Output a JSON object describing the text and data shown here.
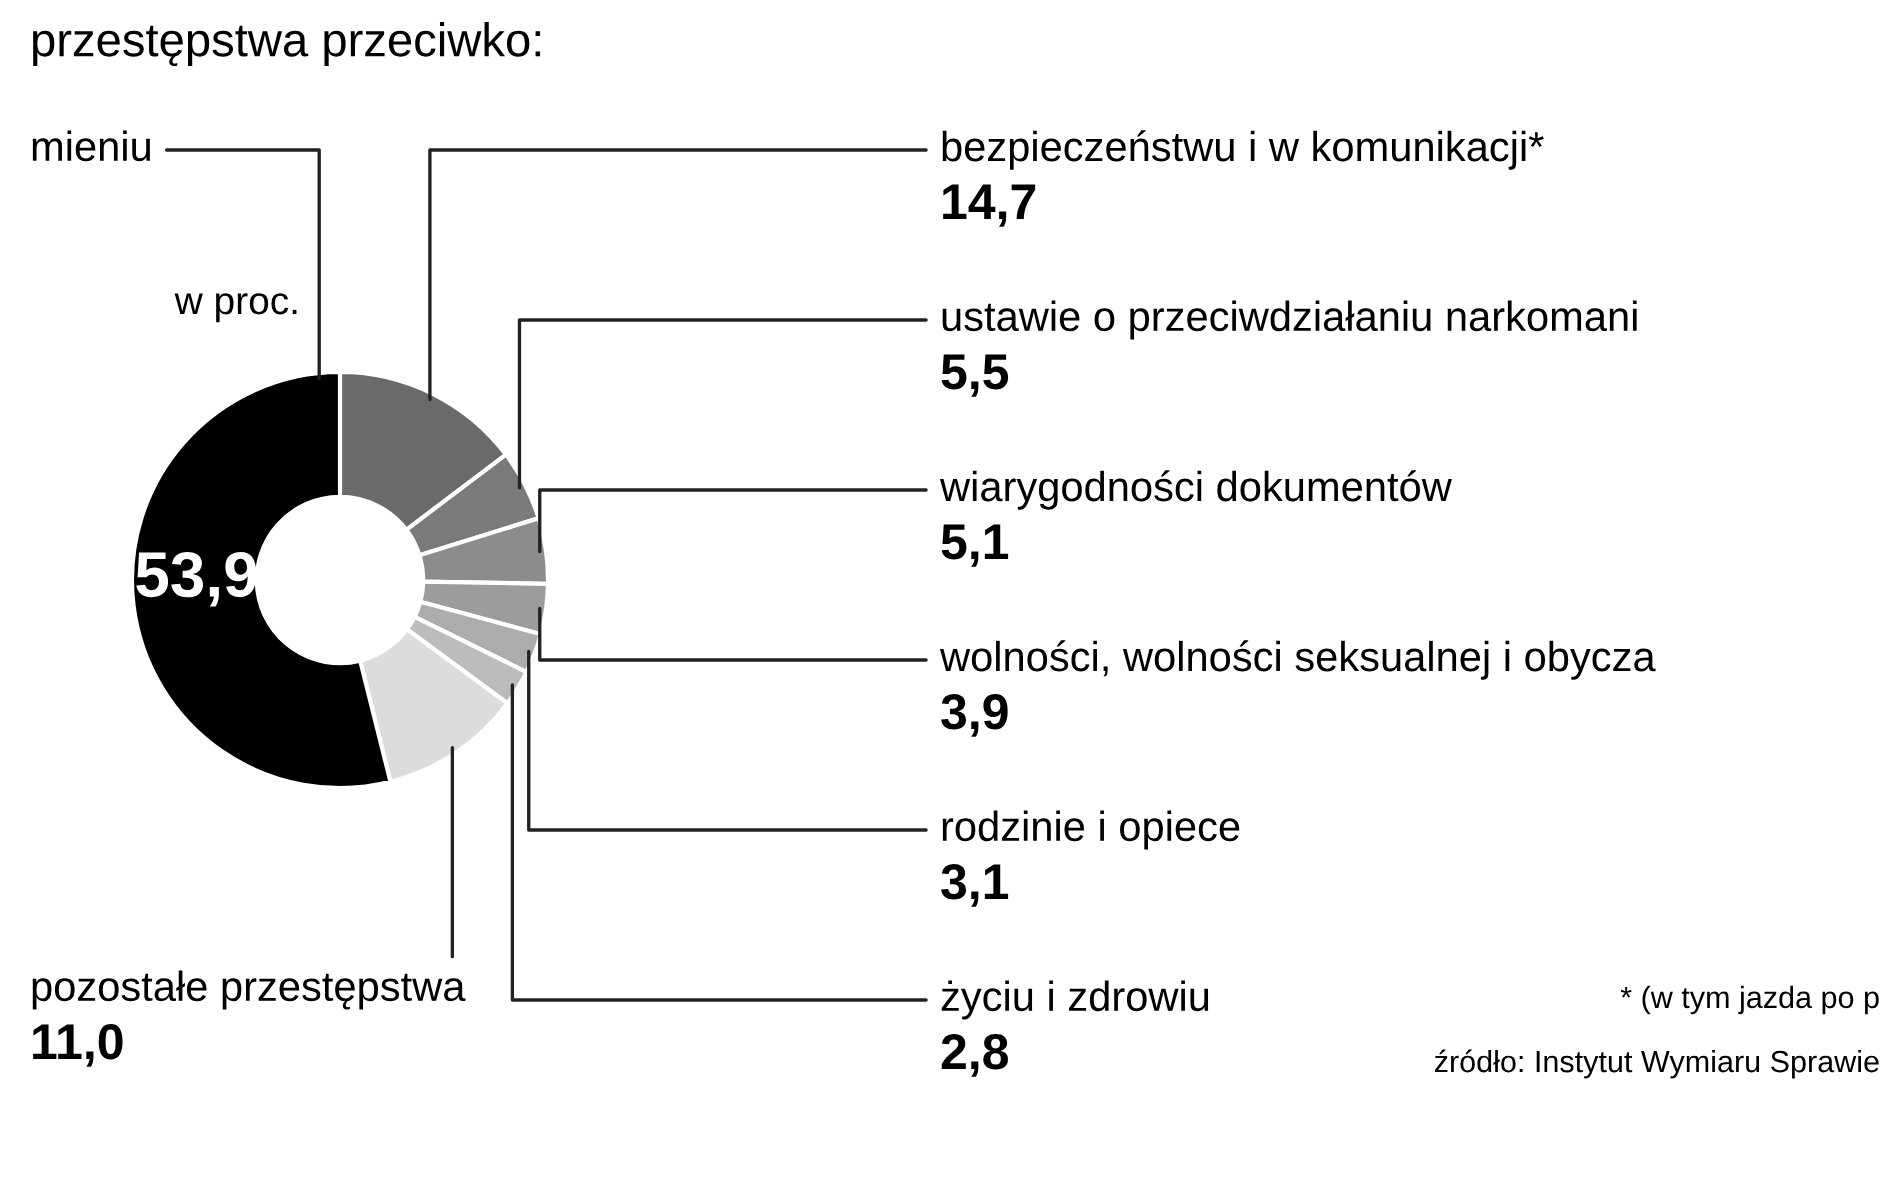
{
  "chart_data": {
    "type": "donut",
    "title": "przestępstwa przeciwko:",
    "categories": [
      "bezpieczeństwu i w komunikacji*",
      "ustawie o przeciwdziałaniu narkomani",
      "wiarygodności dokumentów",
      "wolności, wolności seksualnej i obycza",
      "rodzinie i opiece",
      "życiu i zdrowiu",
      "pozostałe przestępstwa",
      "mieniu"
    ],
    "values": [
      14.7,
      5.5,
      5.1,
      3.9,
      3.1,
      2.8,
      11.0,
      53.9
    ],
    "value_labels": [
      "14,7",
      "5,5",
      "5,1",
      "3,9",
      "3,1",
      "2,8",
      "11,0",
      "53,9"
    ],
    "colors": [
      "#6a6a6a",
      "#7a7a7a",
      "#8c8c8c",
      "#9c9c9c",
      "#acacac",
      "#bcbcbc",
      "#dcdcdc",
      "#000000"
    ],
    "annotations": [
      "w proc.",
      "* (w tym jazda po p",
      "źródło: Instytut Wymiaru Sprawie"
    ],
    "legend": false
  }
}
